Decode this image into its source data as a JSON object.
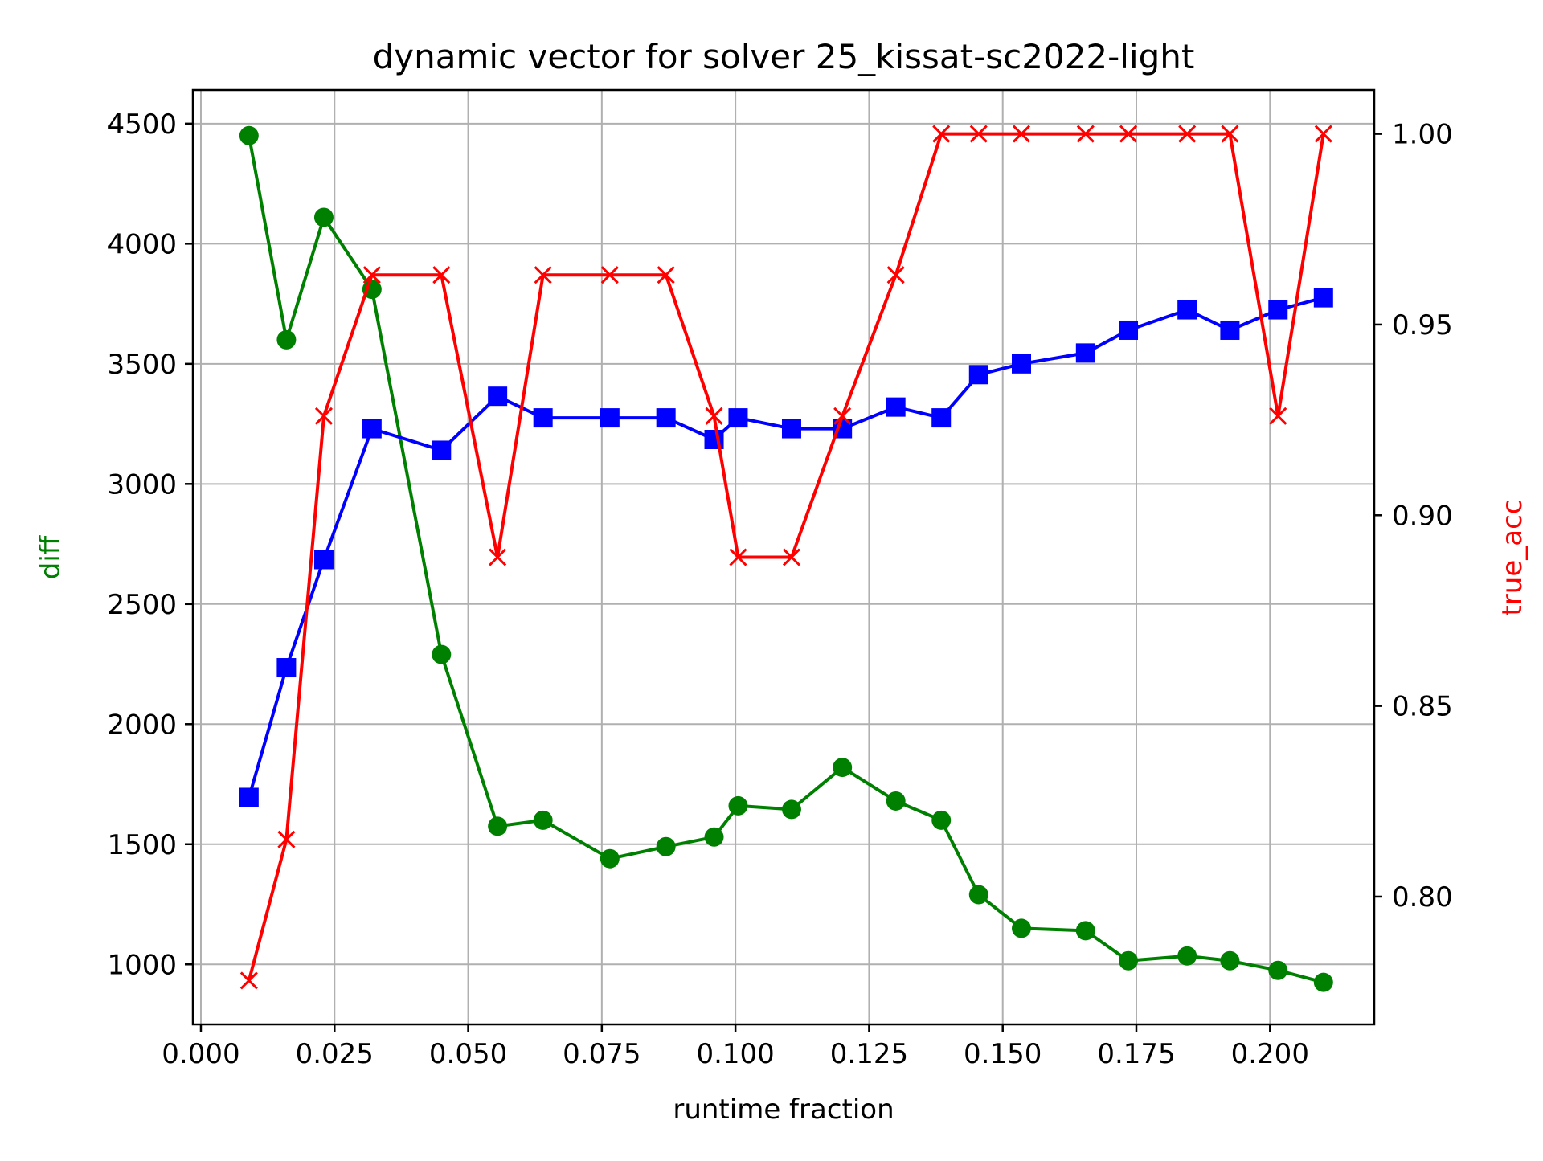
{
  "chart_data": {
    "type": "line",
    "title": "dynamic vector for solver 25_kissat-sc2022-light",
    "xlabel": "runtime fraction",
    "ylabel": "diff",
    "ylabel_color": "#008000",
    "y2label": "true_acc",
    "y2label_color": "#ff0000",
    "xlim": [
      -0.0015,
      0.2195
    ],
    "ylim": [
      750,
      4640
    ],
    "y2lim": [
      0.7665,
      1.0115
    ],
    "x_ticks": [
      0.0,
      0.025,
      0.05,
      0.075,
      0.1,
      0.125,
      0.15,
      0.175,
      0.2
    ],
    "x_tick_labels": [
      "0.000",
      "0.025",
      "0.050",
      "0.075",
      "0.100",
      "0.125",
      "0.150",
      "0.175",
      "0.200"
    ],
    "y_ticks": [
      1000,
      1500,
      2000,
      2500,
      3000,
      3500,
      4000,
      4500
    ],
    "y_tick_labels": [
      "1000",
      "1500",
      "2000",
      "2500",
      "3000",
      "3500",
      "4000",
      "4500"
    ],
    "y2_ticks": [
      0.8,
      0.85,
      0.9,
      0.95,
      1.0
    ],
    "y2_tick_labels": [
      "0.80",
      "0.85",
      "0.90",
      "0.95",
      "1.00"
    ],
    "grid": true,
    "series": [
      {
        "axis": "left",
        "color": "#008000",
        "marker": "circle",
        "x": [
          0.009,
          0.016,
          0.023,
          0.032,
          0.045,
          0.0555,
          0.064,
          0.0765,
          0.087,
          0.096,
          0.1005,
          0.1105,
          0.12,
          0.13,
          0.1385,
          0.1455,
          0.1535,
          0.1655,
          0.1735,
          0.1845,
          0.1925,
          0.2015,
          0.21
        ],
        "values": [
          4450,
          3600,
          4110,
          3810,
          2290,
          1575,
          1600,
          1440,
          1490,
          1530,
          1660,
          1645,
          1820,
          1680,
          1600,
          1290,
          1150,
          1140,
          1015,
          1035,
          1015,
          975,
          925
        ]
      },
      {
        "axis": "left",
        "color": "#0000ff",
        "marker": "square",
        "x": [
          0.009,
          0.016,
          0.023,
          0.032,
          0.045,
          0.0555,
          0.064,
          0.0765,
          0.087,
          0.096,
          0.1005,
          0.1105,
          0.12,
          0.13,
          0.1385,
          0.1455,
          0.1535,
          0.1655,
          0.1735,
          0.1845,
          0.1925,
          0.2015,
          0.21
        ],
        "values": [
          1695,
          2235,
          2685,
          3230,
          3140,
          3365,
          3275,
          3275,
          3275,
          3185,
          3275,
          3230,
          3230,
          3320,
          3275,
          3455,
          3500,
          3545,
          3640,
          3725,
          3640,
          3725,
          3775
        ]
      },
      {
        "axis": "right",
        "color": "#ff0000",
        "marker": "x",
        "x": [
          0.009,
          0.016,
          0.023,
          0.032,
          0.045,
          0.0555,
          0.064,
          0.0765,
          0.087,
          0.096,
          0.1005,
          0.1105,
          0.12,
          0.13,
          0.1385,
          0.1455,
          0.1535,
          0.1655,
          0.1735,
          0.1845,
          0.1925,
          0.2015,
          0.21
        ],
        "values": [
          0.778,
          0.815,
          0.926,
          0.963,
          0.963,
          0.889,
          0.963,
          0.963,
          0.963,
          0.926,
          0.889,
          0.889,
          0.926,
          0.963,
          1.0,
          1.0,
          1.0,
          1.0,
          1.0,
          1.0,
          1.0,
          0.926,
          1.0
        ]
      }
    ]
  }
}
